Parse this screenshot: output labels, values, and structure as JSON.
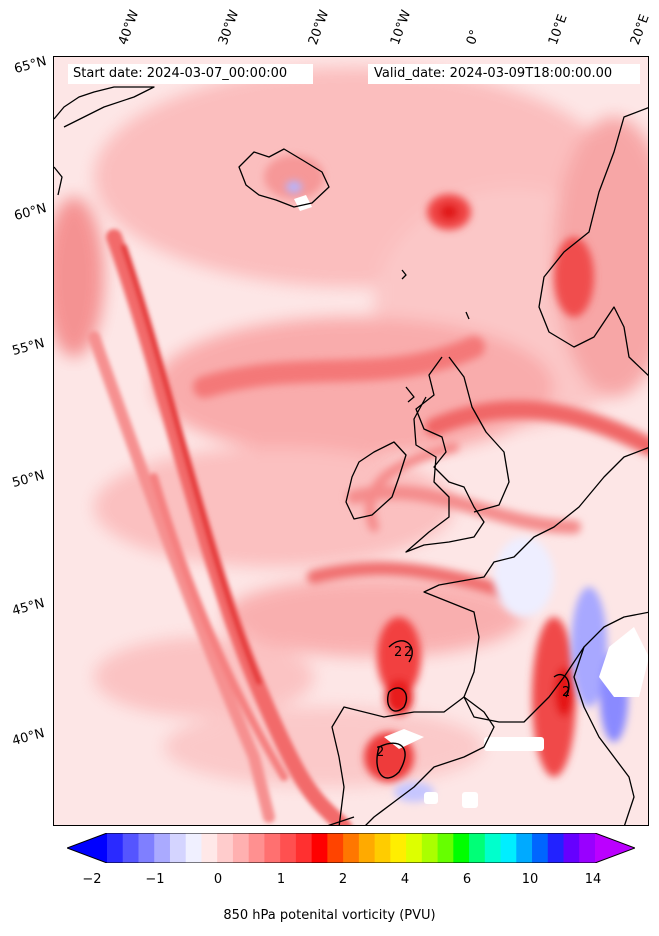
{
  "header": {
    "start_date": "Start date: 2024-03-07_00:00:00",
    "valid_date": "Valid_date: 2024-03-09T18:00:00.00"
  },
  "axes": {
    "longitude_labels": [
      "40°W",
      "30°W",
      "20°W",
      "10°W",
      "0°",
      "10°E",
      "20°E"
    ],
    "latitude_labels": [
      "65°N",
      "60°N",
      "55°N",
      "50°N",
      "45°N",
      "40°N"
    ]
  },
  "map": {
    "contour_labels": [
      "2",
      "2",
      "2",
      "2"
    ],
    "colors": {
      "land_outline": "#000000",
      "background_low": "#fde6e6",
      "mid": "#f9a3a3",
      "high": "#f45a5a",
      "peak": "#ff1a1a",
      "negative": "#6f6fff"
    }
  },
  "colorbar": {
    "title": "850 hPa potenital vorticity (PVU)",
    "tick_labels": [
      "−2",
      "−1",
      "0",
      "1",
      "2",
      "4",
      "6",
      "10",
      "14"
    ],
    "colors": [
      "#0000ff",
      "#2a2aff",
      "#5555ff",
      "#7f7fff",
      "#aaaaff",
      "#d4d4ff",
      "#f0f0ff",
      "#ffe8e8",
      "#ffcccc",
      "#ffb0b0",
      "#ff9090",
      "#ff7070",
      "#ff5050",
      "#ff3030",
      "#ff0000",
      "#ff4400",
      "#ff7700",
      "#ffaa00",
      "#ffcc00",
      "#ffee00",
      "#ddff00",
      "#aaff00",
      "#66ff00",
      "#00ff00",
      "#00ff77",
      "#00ffcc",
      "#00eeff",
      "#00aaff",
      "#0066ff",
      "#2222ff",
      "#6600ff",
      "#9900ff",
      "#bb00ff"
    ]
  }
}
